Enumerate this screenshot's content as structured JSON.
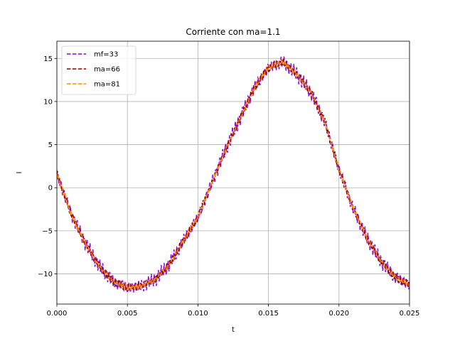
{
  "chart_data": {
    "type": "line",
    "title": "Corriente con ma=1.1",
    "xlabel": "t",
    "ylabel": "I",
    "xlim": [
      0.0,
      0.025
    ],
    "ylim": [
      -13.5,
      17.0
    ],
    "xticks": [
      0.0,
      0.005,
      0.01,
      0.015,
      0.02,
      0.025
    ],
    "xtick_labels": [
      "0.000",
      "0.005",
      "0.010",
      "0.015",
      "0.020",
      "0.025"
    ],
    "yticks": [
      -10,
      -5,
      0,
      5,
      10,
      15
    ],
    "ytick_labels": [
      "−10",
      "−5",
      "0",
      "5",
      "10",
      "15"
    ],
    "grid": true,
    "legend_position": "upper-left",
    "series": [
      {
        "name": "mf=33",
        "color": "#9400d3",
        "style": "dashed",
        "x": [
          0.0,
          0.001,
          0.002,
          0.003,
          0.004,
          0.005,
          0.006,
          0.007,
          0.008,
          0.009,
          0.01,
          0.011,
          0.012,
          0.013,
          0.014,
          0.015,
          0.016,
          0.017,
          0.018,
          0.019,
          0.02,
          0.021,
          0.022,
          0.023,
          0.024,
          0.025
        ],
        "y": [
          1.6,
          -3.0,
          -6.4,
          -9.1,
          -10.9,
          -11.6,
          -11.4,
          -10.6,
          -8.8,
          -6.1,
          -3.4,
          0.6,
          4.6,
          8.1,
          11.6,
          13.9,
          14.6,
          13.2,
          11.1,
          7.6,
          2.1,
          -2.4,
          -5.9,
          -8.6,
          -10.4,
          -11.3
        ],
        "noise_amplitude": 0.9
      },
      {
        "name": "ma=66",
        "color": "#8b0000",
        "style": "dashed",
        "x": [
          0.0,
          0.001,
          0.002,
          0.003,
          0.004,
          0.005,
          0.006,
          0.007,
          0.008,
          0.009,
          0.01,
          0.011,
          0.012,
          0.013,
          0.014,
          0.015,
          0.016,
          0.017,
          0.018,
          0.019,
          0.02,
          0.021,
          0.022,
          0.023,
          0.024,
          0.025
        ],
        "y": [
          1.6,
          -3.0,
          -6.4,
          -9.1,
          -10.9,
          -11.6,
          -11.4,
          -10.6,
          -8.8,
          -6.1,
          -3.4,
          0.6,
          4.6,
          8.1,
          11.6,
          13.9,
          14.6,
          13.2,
          11.1,
          7.6,
          2.1,
          -2.4,
          -5.9,
          -8.6,
          -10.4,
          -11.3
        ],
        "noise_amplitude": 0.5
      },
      {
        "name": "ma=81",
        "color": "#ff8c00",
        "style": "dashed",
        "x": [
          0.0,
          0.001,
          0.002,
          0.003,
          0.004,
          0.005,
          0.006,
          0.007,
          0.008,
          0.009,
          0.01,
          0.011,
          0.012,
          0.013,
          0.014,
          0.015,
          0.016,
          0.017,
          0.018,
          0.019,
          0.02,
          0.021,
          0.022,
          0.023,
          0.024,
          0.025
        ],
        "y": [
          1.6,
          -3.0,
          -6.4,
          -9.1,
          -10.9,
          -11.6,
          -11.4,
          -10.6,
          -8.8,
          -6.1,
          -3.4,
          0.6,
          4.6,
          8.1,
          11.6,
          13.9,
          14.6,
          13.2,
          11.1,
          7.6,
          2.1,
          -2.4,
          -5.9,
          -8.6,
          -10.4,
          -11.3
        ],
        "noise_amplitude": 0.35
      }
    ]
  }
}
